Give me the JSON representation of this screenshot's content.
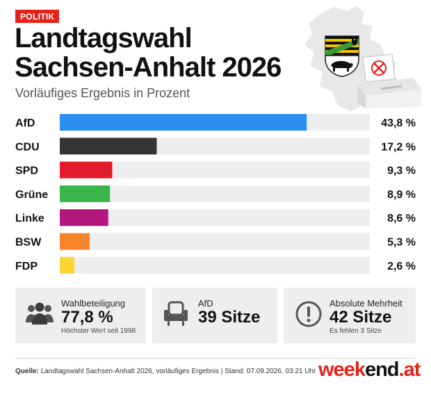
{
  "header": {
    "category": "POLITIK",
    "title_line1": "Landtagswahl",
    "title_line2": "Sachsen-Anhalt 2026",
    "subtitle": "Vorläufiges Ergebnis in Prozent"
  },
  "chart_data": {
    "type": "bar",
    "orientation": "horizontal",
    "categories": [
      "AfD",
      "CDU",
      "SPD",
      "Grüne",
      "Linke",
      "BSW",
      "FDP"
    ],
    "values": [
      43.8,
      17.2,
      9.3,
      8.9,
      8.6,
      5.3,
      2.6
    ],
    "value_labels": [
      "43,8 %",
      "17,2 %",
      "9,3 %",
      "8,9 %",
      "8,6 %",
      "5,3 %",
      "2,6 %"
    ],
    "colors": [
      "#2b8ff0",
      "#353535",
      "#e11d2b",
      "#3ab54a",
      "#b3167c",
      "#f5842b",
      "#fbd633"
    ],
    "track_color": "#eeeeee",
    "xlim": [
      0,
      55
    ],
    "grid": false,
    "legend": "none"
  },
  "info": {
    "turnout": {
      "label": "Wahlbeteiligung",
      "value": "77,8 %",
      "note": "Höchster Wert seit 1998",
      "icon": "people-icon"
    },
    "seats": {
      "label": "AfD",
      "value": "39 Sitze",
      "icon": "armchair-icon"
    },
    "majority": {
      "label": "Absolute Mehrheit",
      "value": "42 Sitze",
      "note": "Es fehlen 3 Sitze",
      "icon": "exclamation-icon"
    }
  },
  "footer": {
    "source_label": "Quelle:",
    "source_text": "Landtagswahl Sachsen-Anhalt 2026, vorläufiges Ergebnis  |  Stand: 07.09.2026, 03:21 Uhr",
    "brand_part1": "week",
    "brand_part2": "end",
    "brand_part3": ".at"
  },
  "colors": {
    "accent": "#e2231a",
    "panel": "#eeeeee",
    "muted": "#555555"
  }
}
